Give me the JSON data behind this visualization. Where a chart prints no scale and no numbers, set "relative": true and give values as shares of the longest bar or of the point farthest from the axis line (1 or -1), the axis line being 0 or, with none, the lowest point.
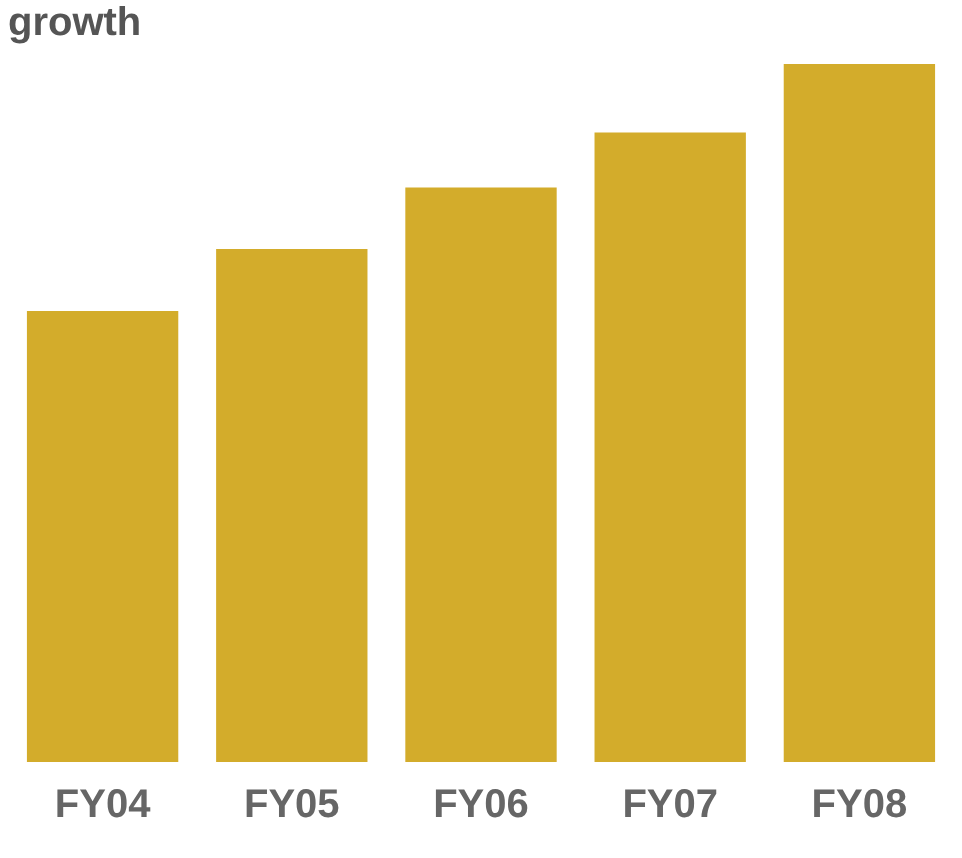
{
  "chart_data": {
    "type": "bar",
    "title": "growth",
    "categories": [
      "FY04",
      "FY05",
      "FY06",
      "FY07",
      "FY08"
    ],
    "values": [
      0.646,
      0.735,
      0.823,
      0.902,
      1
    ],
    "color": "#d3ac2b",
    "relative": true,
    "grid": false,
    "legend": false
  }
}
